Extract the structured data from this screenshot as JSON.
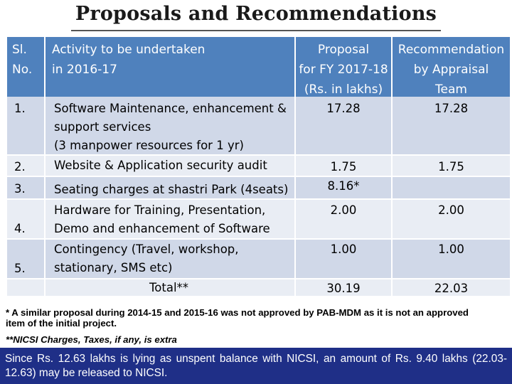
{
  "title": "Proposals and Recommendations",
  "table": {
    "headers": {
      "sl": [
        "Sl.",
        "No."
      ],
      "activity": [
        "Activity to be undertaken",
        "in 2016-17"
      ],
      "proposal": [
        "Proposal",
        "for FY 2017-18",
        "(Rs. in lakhs)"
      ],
      "recommendation": [
        "Recommendation",
        "by Appraisal",
        "Team"
      ]
    },
    "rows": [
      {
        "sl": "1.",
        "activity": [
          "Software Maintenance, enhancement &",
          "support services",
          "(3 manpower resources for  1 yr)"
        ],
        "proposal": "17.28",
        "recommendation": "17.28"
      },
      {
        "sl": "2.",
        "activity": [
          "Website & Application security audit"
        ],
        "proposal": "1.75",
        "recommendation": "1.75"
      },
      {
        "sl": "3.",
        "activity": [
          "Seating charges at shastri Park (4seats)"
        ],
        "proposal": "8.16*",
        "recommendation": ""
      },
      {
        "sl": "4.",
        "activity": [
          "Hardware for Training, Presentation,",
          "Demo and enhancement of Software"
        ],
        "proposal": "2.00",
        "recommendation": "2.00"
      },
      {
        "sl": "5.",
        "activity": [
          "Contingency (Travel, workshop,",
          "stationary, SMS etc)"
        ],
        "proposal": "1.00",
        "recommendation": "1.00"
      }
    ],
    "total": {
      "label": "Total**",
      "proposal": "30.19",
      "recommendation": "22.03"
    }
  },
  "notes": {
    "note1": [
      "*  A similar proposal during 2014-15 and 2015-16 was not approved by PAB-MDM as it is not an approved",
      "item of the initial project."
    ],
    "note2": "**NICSI Charges, Taxes, if any, is extra"
  },
  "footer": "Since Rs. 12.63 lakhs is lying as unspent balance with NICSI, an amount of Rs. 9.40 lakhs (22.03-12.63) may be released to NICSI.",
  "colors": {
    "header": "#4f81bd",
    "band_light": "#e9edf4",
    "band_dark": "#d0d8e8",
    "footer": "#1f2f87"
  }
}
